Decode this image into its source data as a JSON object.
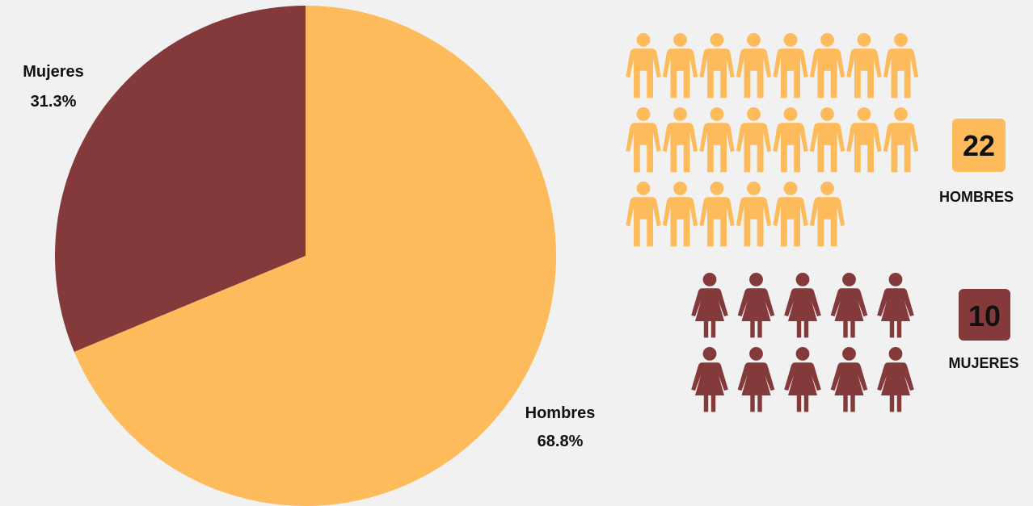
{
  "chart_data": {
    "type": "pie",
    "slices": [
      {
        "label": "Hombres",
        "value": 68.8,
        "display": "68.8%",
        "color": "#fdbb5b"
      },
      {
        "label": "Mujeres",
        "value": 31.3,
        "display": "31.3%",
        "color": "#84393b"
      }
    ]
  },
  "pictogram": {
    "men": {
      "count": 22,
      "count_label": "22",
      "caption": "HOMBRES",
      "color": "#fdbb5b",
      "icon": "man-icon"
    },
    "women": {
      "count": 10,
      "count_label": "10",
      "caption": "MUJERES",
      "color": "#84393b",
      "icon": "woman-icon"
    }
  }
}
